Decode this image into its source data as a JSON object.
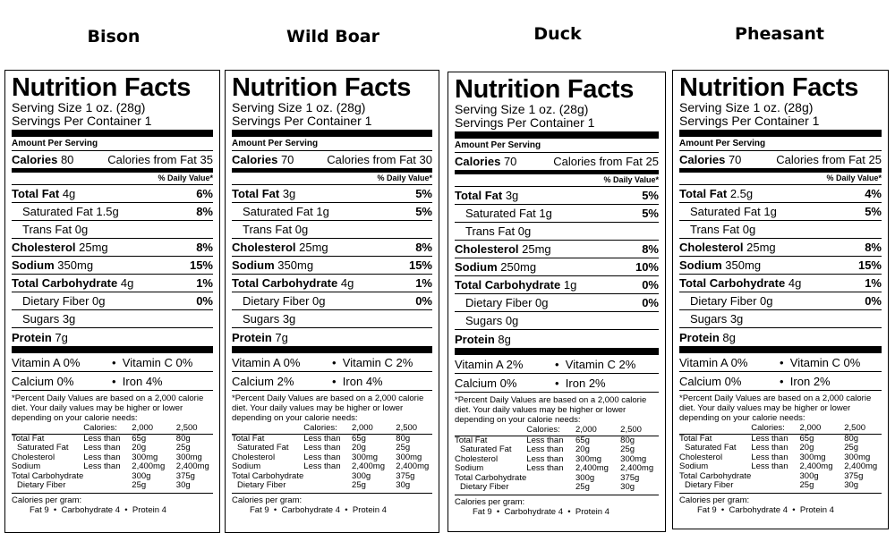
{
  "labels": [
    {
      "animal": "Bison",
      "title": "Nutrition Facts",
      "serving_size": "Serving Size 1 oz. (28g)",
      "servings_per_container": "Servings Per Container 1",
      "amount_per_serving": "Amount Per Serving",
      "calories": "80",
      "calories_from_fat": "35",
      "dv_header": "% Daily Value*",
      "total_fat": "4g",
      "total_fat_dv": "6%",
      "sat_fat": "1.5g",
      "sat_fat_dv": "8%",
      "trans_fat": "0g",
      "cholesterol": "25mg",
      "cholesterol_dv": "8%",
      "sodium": "350mg",
      "sodium_dv": "15%",
      "carb": "4g",
      "carb_dv": "1%",
      "fiber": "0g",
      "fiber_dv": "0%",
      "sugars": "3g",
      "protein": "7g",
      "vit_a": "0%",
      "vit_c": "0%",
      "calcium": "0%",
      "iron": "4%"
    },
    {
      "animal": "Wild Boar",
      "title": "Nutrition Facts",
      "serving_size": "Serving Size 1 oz. (28g)",
      "servings_per_container": "Servings Per Container 1",
      "amount_per_serving": "Amount Per Serving",
      "calories": "70",
      "calories_from_fat": "30",
      "dv_header": "% Daily Value*",
      "total_fat": "3g",
      "total_fat_dv": "5%",
      "sat_fat": "1g",
      "sat_fat_dv": "5%",
      "trans_fat": "0g",
      "cholesterol": "25mg",
      "cholesterol_dv": "8%",
      "sodium": "350mg",
      "sodium_dv": "15%",
      "carb": "4g",
      "carb_dv": "1%",
      "fiber": "0g",
      "fiber_dv": "0%",
      "sugars": "3g",
      "protein": "7g",
      "vit_a": "0%",
      "vit_c": "2%",
      "calcium": "2%",
      "iron": "4%"
    },
    {
      "animal": "Duck",
      "title": "Nutrition Facts",
      "serving_size": "Serving Size 1 oz. (28g)",
      "servings_per_container": "Servings Per Container 1",
      "amount_per_serving": "Amount Per Serving",
      "calories": "70",
      "calories_from_fat": "25",
      "dv_header": "% Daily Value*",
      "total_fat": "3g",
      "total_fat_dv": "5%",
      "sat_fat": "1g",
      "sat_fat_dv": "5%",
      "trans_fat": "0g",
      "cholesterol": "25mg",
      "cholesterol_dv": "8%",
      "sodium": "250mg",
      "sodium_dv": "10%",
      "carb": "1g",
      "carb_dv": "0%",
      "fiber": "0g",
      "fiber_dv": "0%",
      "sugars": "0g",
      "protein": "8g",
      "vit_a": "2%",
      "vit_c": "2%",
      "calcium": "0%",
      "iron": "2%"
    },
    {
      "animal": "Pheasant",
      "title": "Nutrition Facts",
      "serving_size": "Serving Size 1 oz. (28g)",
      "servings_per_container": "Servings Per Container 1",
      "amount_per_serving": "Amount Per Serving",
      "calories": "70",
      "calories_from_fat": "25",
      "dv_header": "% Daily Value*",
      "total_fat": "2.5g",
      "total_fat_dv": "4%",
      "sat_fat": "1g",
      "sat_fat_dv": "5%",
      "trans_fat": "0g",
      "cholesterol": "25mg",
      "cholesterol_dv": "8%",
      "sodium": "350mg",
      "sodium_dv": "15%",
      "carb": "4g",
      "carb_dv": "1%",
      "fiber": "0g",
      "fiber_dv": "0%",
      "sugars": "3g",
      "protein": "8g",
      "vit_a": "0%",
      "vit_c": "0%",
      "calcium": "0%",
      "iron": "2%"
    }
  ],
  "row_labels": {
    "calories": "Calories",
    "calories_from_fat": "Calories from Fat",
    "total_fat": "Total Fat",
    "sat_fat": "Saturated Fat",
    "trans_fat": "Trans Fat",
    "cholesterol": "Cholesterol",
    "sodium": "Sodium",
    "carb": "Total Carbohydrate",
    "fiber": "Dietary Fiber",
    "sugars": "Sugars",
    "protein": "Protein",
    "vit_a": "Vitamin A",
    "vit_c": "Vitamin C",
    "calcium": "Calcium",
    "iron": "Iron",
    "bullet": "•"
  },
  "footnote": "*Percent Daily Values are based on a 2,000 calorie diet. Your daily values may be higher or lower depending on your calorie needs:",
  "dv_table": {
    "header": [
      "",
      "Calories:",
      "2,000",
      "2,500"
    ],
    "rows": [
      [
        "Total Fat",
        "Less than",
        "65g",
        "80g"
      ],
      [
        "Saturated Fat",
        "Less than",
        "20g",
        "25g"
      ],
      [
        "Cholesterol",
        "Less than",
        "300mg",
        "300mg"
      ],
      [
        "Sodium",
        "Less than",
        "2,400mg",
        "2,400mg"
      ],
      [
        "Total Carbohydrate",
        "",
        "300g",
        "375g"
      ],
      [
        "Dietary Fiber",
        "",
        "25g",
        "30g"
      ]
    ]
  },
  "calories_per_gram": {
    "title": "Calories per gram:",
    "line": "Fat 9  •  Carbohydrate 4  •  Protein 4"
  }
}
